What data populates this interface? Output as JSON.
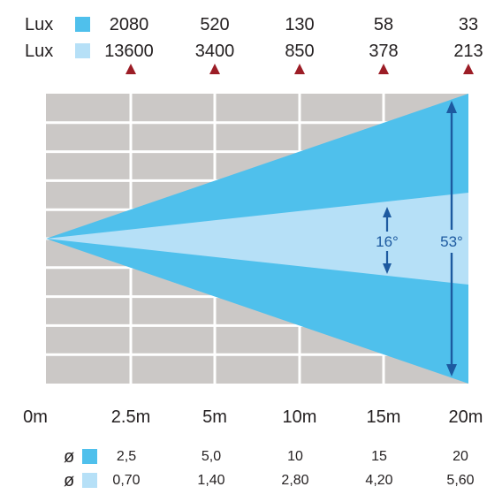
{
  "lux_rows": [
    {
      "label": "Lux",
      "color": "#4fc0ec",
      "values": [
        "2080",
        "520",
        "130",
        "58",
        "33"
      ]
    },
    {
      "label": "Lux",
      "color": "#b6e0f7",
      "values": [
        "13600",
        "3400",
        "850",
        "378",
        "213"
      ]
    }
  ],
  "distances": [
    "0m",
    "2.5m",
    "5m",
    "10m",
    "15m",
    "20m"
  ],
  "diameter_rows": [
    {
      "label": "ø",
      "color": "#4fc0ec",
      "values": [
        "2,5",
        "5,0",
        "10",
        "15",
        "20"
      ]
    },
    {
      "label": "ø",
      "color": "#b6e0f7",
      "values": [
        "0,70",
        "1,40",
        "2,80",
        "4,20",
        "5,60"
      ]
    }
  ],
  "angles": {
    "narrow": "16°",
    "wide": "53°"
  },
  "colors": {
    "grid_bg": "#cbc8c6",
    "grid_line": "#ffffff",
    "wide_beam": "#4fc0ec",
    "narrow_beam": "#b6e0f7",
    "arrow": "#1d5aa0",
    "marker": "#9c1d26"
  }
}
